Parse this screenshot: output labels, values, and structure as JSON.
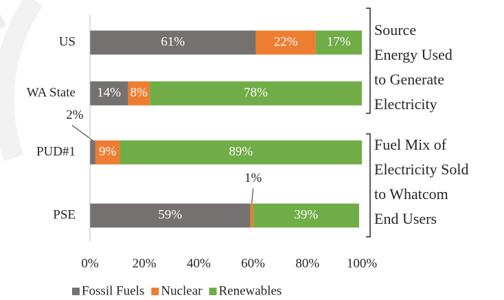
{
  "chart_data": {
    "type": "stacked-bar-horizontal",
    "categories": [
      "US",
      "WA State",
      "PUD#1",
      "PSE"
    ],
    "series": [
      {
        "name": "Fossil Fuels",
        "color": "#767171",
        "values": [
          61,
          14,
          2,
          59
        ],
        "value_labels": [
          "61%",
          "14%",
          "2%",
          "59%"
        ]
      },
      {
        "name": "Nuclear",
        "color": "#ed7d31",
        "values": [
          22,
          8,
          9,
          1
        ],
        "value_labels": [
          "22%",
          "8%",
          "9%",
          "1%"
        ]
      },
      {
        "name": "Renewables",
        "color": "#70ad47",
        "values": [
          17,
          78,
          89,
          39
        ],
        "value_labels": [
          "17%",
          "78%",
          "89%",
          "39%"
        ]
      }
    ],
    "xlim": [
      0,
      100
    ],
    "xticks": [
      {
        "value": 0,
        "label": "0%"
      },
      {
        "value": 20,
        "label": "20%"
      },
      {
        "value": 40,
        "label": "40%"
      },
      {
        "value": 60,
        "label": "60%"
      },
      {
        "value": 80,
        "label": "80%"
      },
      {
        "value": 100,
        "label": "100%"
      }
    ],
    "annotations": [
      {
        "lines": [
          "Source",
          "Energy Used",
          "to Generate",
          "Electricity"
        ]
      },
      {
        "lines": [
          "Fuel Mix of",
          "Electricity Sold",
          "to Whatcom",
          "End Users"
        ]
      }
    ],
    "legend": "bottom"
  }
}
